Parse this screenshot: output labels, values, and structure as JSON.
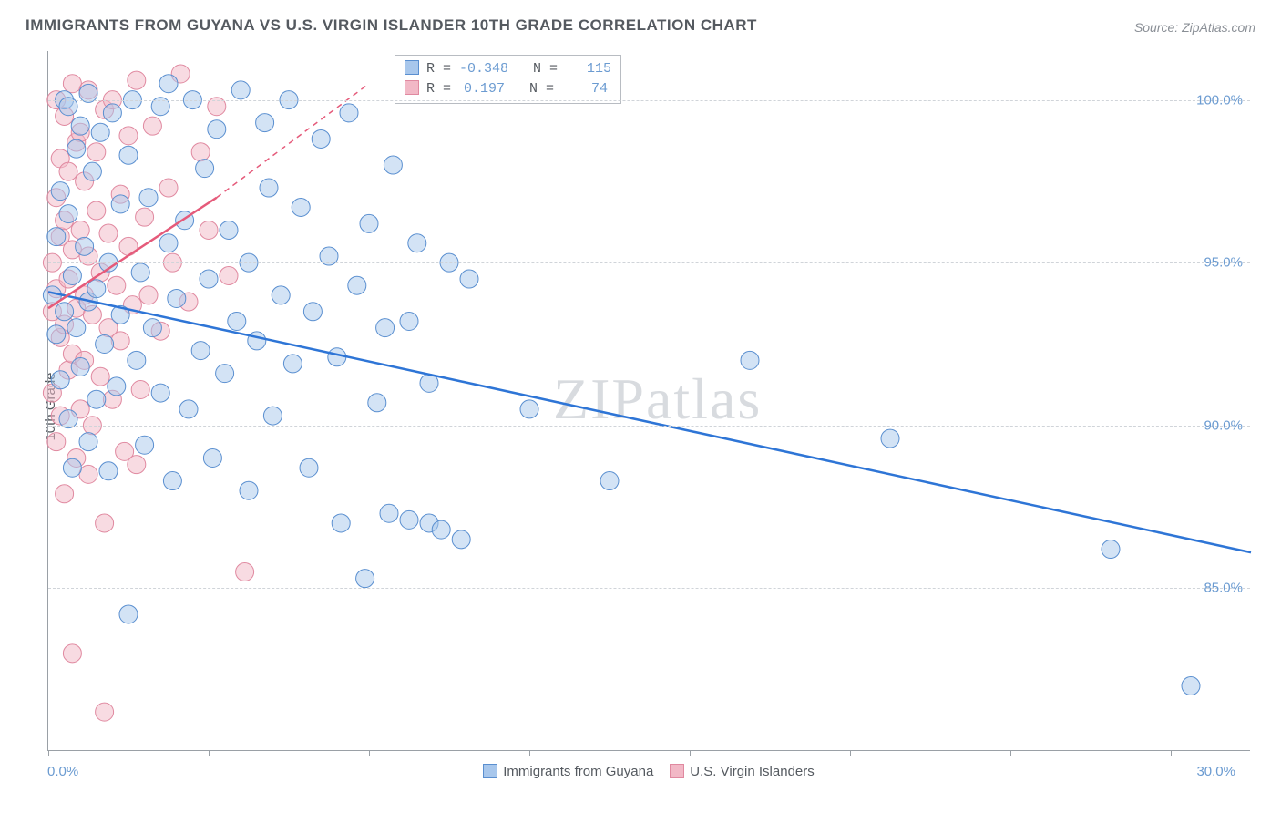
{
  "title": "IMMIGRANTS FROM GUYANA VS U.S. VIRGIN ISLANDER 10TH GRADE CORRELATION CHART",
  "source": "Source: ZipAtlas.com",
  "ylabel": "10th Grade",
  "watermark": "ZIPatlas",
  "chart": {
    "type": "scatter",
    "xlim": [
      0,
      30
    ],
    "ylim": [
      80,
      101.5
    ],
    "xtick_positions": [
      0,
      4,
      8,
      12,
      16,
      20,
      24,
      28
    ],
    "ytick_positions": [
      85,
      90,
      95,
      100
    ],
    "ytick_labels": [
      "85.0%",
      "90.0%",
      "95.0%",
      "100.0%"
    ],
    "xlabel_min": "0.0%",
    "xlabel_max": "30.0%",
    "grid_color": "#d0d4d9",
    "axis_color": "#9aa0a6",
    "background": "#ffffff",
    "marker_radius": 10,
    "marker_opacity": 0.5,
    "series": [
      {
        "name": "Immigrants from Guyana",
        "color_fill": "#a8c7ec",
        "color_stroke": "#5a8fd0",
        "line_color": "#2e75d6",
        "line_width": 2.5,
        "R": "-0.348",
        "N": "115",
        "trend": {
          "x1": 0,
          "y1": 94.1,
          "x2": 30,
          "y2": 86.1
        },
        "points": [
          [
            0.1,
            94.0
          ],
          [
            0.2,
            95.8
          ],
          [
            0.2,
            92.8
          ],
          [
            0.3,
            97.2
          ],
          [
            0.3,
            91.4
          ],
          [
            0.4,
            100.0
          ],
          [
            0.4,
            93.5
          ],
          [
            0.5,
            99.8
          ],
          [
            0.5,
            96.5
          ],
          [
            0.5,
            90.2
          ],
          [
            0.6,
            94.6
          ],
          [
            0.6,
            88.7
          ],
          [
            0.7,
            98.5
          ],
          [
            0.7,
            93.0
          ],
          [
            0.8,
            99.2
          ],
          [
            0.8,
            91.8
          ],
          [
            0.9,
            95.5
          ],
          [
            1.0,
            100.2
          ],
          [
            1.0,
            93.8
          ],
          [
            1.0,
            89.5
          ],
          [
            1.1,
            97.8
          ],
          [
            1.2,
            94.2
          ],
          [
            1.2,
            90.8
          ],
          [
            1.3,
            99.0
          ],
          [
            1.4,
            92.5
          ],
          [
            1.5,
            95.0
          ],
          [
            1.5,
            88.6
          ],
          [
            1.6,
            99.6
          ],
          [
            1.7,
            91.2
          ],
          [
            1.8,
            96.8
          ],
          [
            1.8,
            93.4
          ],
          [
            2.0,
            98.3
          ],
          [
            2.0,
            84.2
          ],
          [
            2.1,
            100.0
          ],
          [
            2.2,
            92.0
          ],
          [
            2.3,
            94.7
          ],
          [
            2.4,
            89.4
          ],
          [
            2.5,
            97.0
          ],
          [
            2.6,
            93.0
          ],
          [
            2.8,
            99.8
          ],
          [
            2.8,
            91.0
          ],
          [
            3.0,
            95.6
          ],
          [
            3.0,
            100.5
          ],
          [
            3.1,
            88.3
          ],
          [
            3.2,
            93.9
          ],
          [
            3.4,
            96.3
          ],
          [
            3.5,
            90.5
          ],
          [
            3.6,
            100.0
          ],
          [
            3.8,
            92.3
          ],
          [
            3.9,
            97.9
          ],
          [
            4.0,
            94.5
          ],
          [
            4.1,
            89.0
          ],
          [
            4.2,
            99.1
          ],
          [
            4.4,
            91.6
          ],
          [
            4.5,
            96.0
          ],
          [
            4.7,
            93.2
          ],
          [
            4.8,
            100.3
          ],
          [
            5.0,
            88.0
          ],
          [
            5.0,
            95.0
          ],
          [
            5.2,
            92.6
          ],
          [
            5.4,
            99.3
          ],
          [
            5.5,
            97.3
          ],
          [
            5.6,
            90.3
          ],
          [
            5.8,
            94.0
          ],
          [
            6.0,
            100.0
          ],
          [
            6.1,
            91.9
          ],
          [
            6.3,
            96.7
          ],
          [
            6.5,
            88.7
          ],
          [
            6.6,
            93.5
          ],
          [
            6.8,
            98.8
          ],
          [
            7.0,
            95.2
          ],
          [
            7.2,
            92.1
          ],
          [
            7.3,
            87.0
          ],
          [
            7.5,
            99.6
          ],
          [
            7.7,
            94.3
          ],
          [
            7.9,
            85.3
          ],
          [
            8.0,
            96.2
          ],
          [
            8.2,
            90.7
          ],
          [
            8.4,
            93.0
          ],
          [
            8.5,
            87.3
          ],
          [
            8.6,
            98.0
          ],
          [
            9.0,
            93.2
          ],
          [
            9.0,
            87.1
          ],
          [
            9.2,
            95.6
          ],
          [
            9.5,
            87.0
          ],
          [
            9.5,
            91.3
          ],
          [
            9.8,
            86.8
          ],
          [
            10.0,
            95.0
          ],
          [
            10.3,
            86.5
          ],
          [
            10.5,
            94.5
          ],
          [
            12.0,
            90.5
          ],
          [
            14.0,
            88.3
          ],
          [
            17.5,
            92.0
          ],
          [
            21.0,
            89.6
          ],
          [
            26.5,
            86.2
          ],
          [
            28.5,
            82.0
          ]
        ]
      },
      {
        "name": "U.S. Virgin Islanders",
        "color_fill": "#f2b8c6",
        "color_stroke": "#e089a0",
        "line_color": "#e55a7a",
        "line_width": 2.5,
        "R": "0.197",
        "N": "74",
        "trend_solid": {
          "x1": 0,
          "y1": 93.6,
          "x2": 4.2,
          "y2": 97.0
        },
        "trend_dashed": {
          "x1": 4.2,
          "y1": 97.0,
          "x2": 8.0,
          "y2": 100.5
        },
        "points": [
          [
            0.1,
            93.5
          ],
          [
            0.1,
            95.0
          ],
          [
            0.1,
            91.0
          ],
          [
            0.2,
            97.0
          ],
          [
            0.2,
            94.2
          ],
          [
            0.2,
            89.5
          ],
          [
            0.2,
            100.0
          ],
          [
            0.3,
            92.7
          ],
          [
            0.3,
            98.2
          ],
          [
            0.3,
            95.8
          ],
          [
            0.3,
            90.3
          ],
          [
            0.4,
            93.1
          ],
          [
            0.4,
            99.5
          ],
          [
            0.4,
            96.3
          ],
          [
            0.4,
            87.9
          ],
          [
            0.5,
            94.5
          ],
          [
            0.5,
            91.7
          ],
          [
            0.5,
            97.8
          ],
          [
            0.6,
            100.5
          ],
          [
            0.6,
            92.2
          ],
          [
            0.6,
            95.4
          ],
          [
            0.7,
            89.0
          ],
          [
            0.7,
            98.7
          ],
          [
            0.7,
            93.6
          ],
          [
            0.8,
            96.0
          ],
          [
            0.8,
            90.5
          ],
          [
            0.8,
            99.0
          ],
          [
            0.9,
            94.0
          ],
          [
            0.9,
            92.0
          ],
          [
            0.9,
            97.5
          ],
          [
            1.0,
            100.3
          ],
          [
            1.0,
            88.5
          ],
          [
            1.0,
            95.2
          ],
          [
            1.1,
            93.4
          ],
          [
            1.1,
            90.0
          ],
          [
            1.2,
            96.6
          ],
          [
            1.2,
            98.4
          ],
          [
            1.3,
            91.5
          ],
          [
            1.3,
            94.7
          ],
          [
            1.4,
            99.7
          ],
          [
            1.4,
            87.0
          ],
          [
            1.5,
            93.0
          ],
          [
            1.5,
            95.9
          ],
          [
            1.6,
            90.8
          ],
          [
            1.6,
            100.0
          ],
          [
            1.7,
            94.3
          ],
          [
            1.8,
            97.1
          ],
          [
            1.8,
            92.6
          ],
          [
            1.9,
            89.2
          ],
          [
            2.0,
            98.9
          ],
          [
            2.0,
            95.5
          ],
          [
            2.1,
            93.7
          ],
          [
            2.2,
            100.6
          ],
          [
            2.3,
            91.1
          ],
          [
            2.4,
            96.4
          ],
          [
            2.5,
            94.0
          ],
          [
            2.6,
            99.2
          ],
          [
            2.8,
            92.9
          ],
          [
            3.0,
            97.3
          ],
          [
            3.1,
            95.0
          ],
          [
            3.3,
            100.8
          ],
          [
            3.5,
            93.8
          ],
          [
            3.8,
            98.4
          ],
          [
            4.0,
            96.0
          ],
          [
            4.2,
            99.8
          ],
          [
            4.5,
            94.6
          ],
          [
            4.9,
            85.5
          ],
          [
            0.6,
            83.0
          ],
          [
            1.4,
            81.2
          ],
          [
            2.2,
            88.8
          ]
        ]
      }
    ]
  },
  "stats_legend": {
    "rows": [
      {
        "sw_fill": "#a8c7ec",
        "sw_stroke": "#5a8fd0",
        "R": "-0.348",
        "N": "115"
      },
      {
        "sw_fill": "#f2b8c6",
        "sw_stroke": "#e089a0",
        "R": "0.197",
        "N": "74"
      }
    ]
  },
  "bottom_legend": [
    {
      "sw_fill": "#a8c7ec",
      "sw_stroke": "#5a8fd0",
      "label": "Immigrants from Guyana"
    },
    {
      "sw_fill": "#f2b8c6",
      "sw_stroke": "#e089a0",
      "label": "U.S. Virgin Islanders"
    }
  ]
}
